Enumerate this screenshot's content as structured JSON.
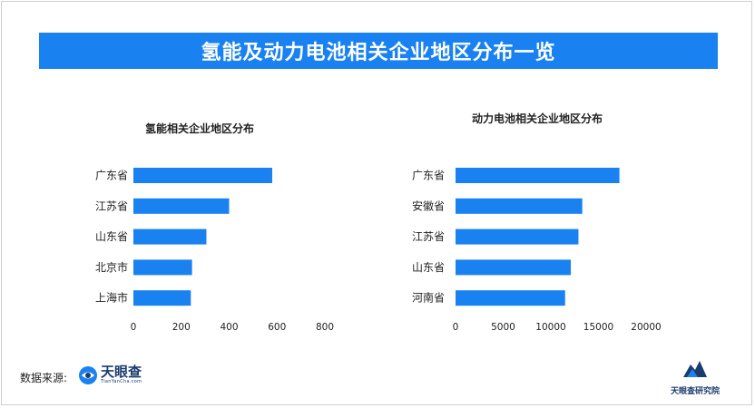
{
  "banner": {
    "title": "氢能及动力电池相关企业地区分布一览"
  },
  "chart_data": [
    {
      "type": "bar",
      "orientation": "horizontal",
      "title": "氢能相关企业地区分布",
      "categories": [
        "广东省",
        "江苏省",
        "山东省",
        "北京市",
        "上海市"
      ],
      "values": [
        580,
        400,
        305,
        245,
        240
      ],
      "xlim": [
        0,
        800
      ],
      "xticks": [
        "0",
        "200",
        "400",
        "600",
        "800"
      ],
      "color": "#1a82f0",
      "grid": false
    },
    {
      "type": "bar",
      "orientation": "horizontal",
      "title": "动力电池相关企业地区分布",
      "categories": [
        "广东省",
        "安徽省",
        "江苏省",
        "山东省",
        "河南省"
      ],
      "values": [
        17200,
        13300,
        12900,
        12100,
        11500
      ],
      "xlim": [
        0,
        20000
      ],
      "xticks": [
        "0",
        "5000",
        "10000",
        "15000",
        "20000"
      ],
      "color": "#1a82f0",
      "grid": false
    }
  ],
  "footer": {
    "source_label": "数据来源:",
    "logo_name": "天眼查",
    "logo_url_text": "TianYanCha.com",
    "institute_name": "天眼查研究院"
  }
}
